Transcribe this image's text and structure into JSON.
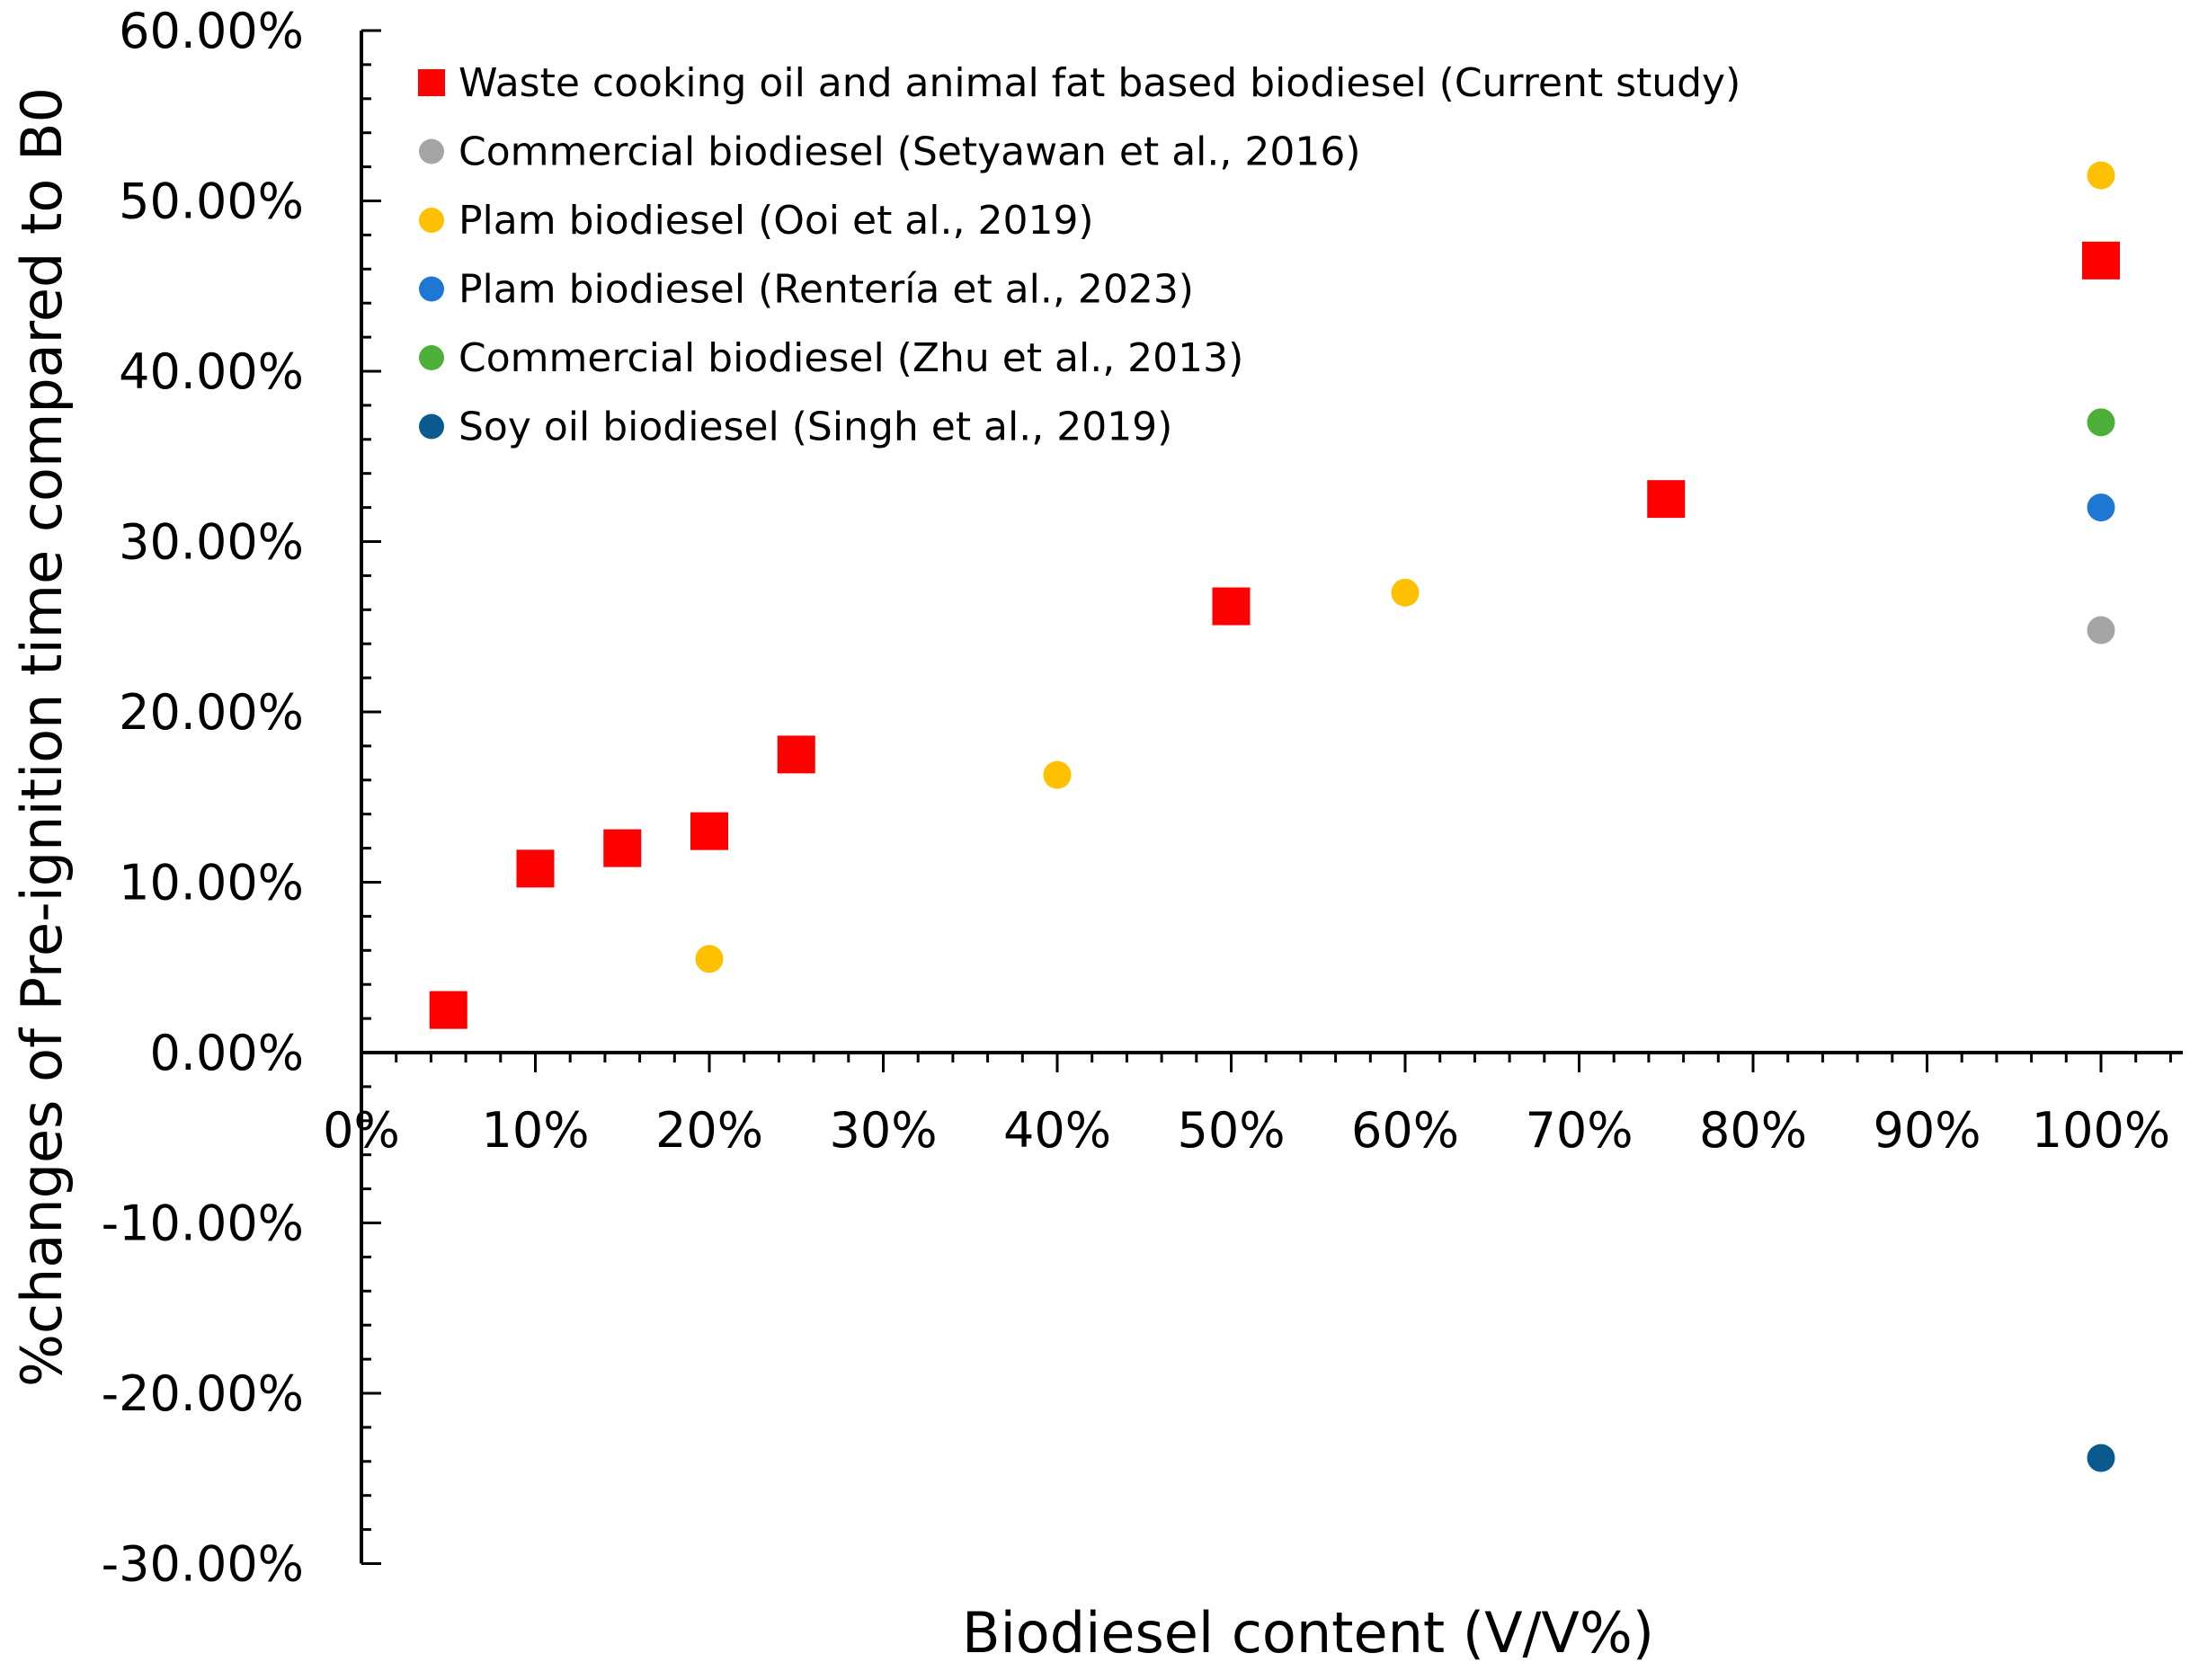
{
  "chart_data": {
    "type": "scatter",
    "title": "",
    "xlabel": "Biodiesel content (V/V%)",
    "ylabel": "%changes of Pre-ignition time compared to B0",
    "xlim": [
      0,
      105
    ],
    "ylim": [
      -30,
      60
    ],
    "x_ticks": [
      0,
      10,
      20,
      30,
      40,
      50,
      60,
      70,
      80,
      90,
      100
    ],
    "x_tick_labels": [
      "0%",
      "10%",
      "20%",
      "30%",
      "40%",
      "50%",
      "60%",
      "70%",
      "80%",
      "90%",
      "100%"
    ],
    "y_ticks": [
      60,
      50,
      40,
      30,
      20,
      10,
      0,
      -10,
      -20,
      -30
    ],
    "y_tick_labels": [
      "60.00%",
      "50.00%",
      "40.00%",
      "30.00%",
      "20.00%",
      "10.00%",
      "0.00%",
      "-10.00%",
      "-20.00%",
      "-30.00%"
    ],
    "grid": false,
    "legend_position": "top-left",
    "series": [
      {
        "name": "Waste cooking oil and animal fat based biodiesel (Current study)",
        "marker": "square",
        "color": "#ff0000",
        "points": [
          {
            "x": 5,
            "y": 2.5
          },
          {
            "x": 10,
            "y": 10.8
          },
          {
            "x": 15,
            "y": 12.0
          },
          {
            "x": 20,
            "y": 13.0
          },
          {
            "x": 25,
            "y": 17.5
          },
          {
            "x": 50,
            "y": 26.2
          },
          {
            "x": 75,
            "y": 32.5
          },
          {
            "x": 100,
            "y": 46.5
          }
        ]
      },
      {
        "name": "Commercial biodiesel (Setyawan et al., 2016)",
        "marker": "circle",
        "color": "#a5a5a5",
        "points": [
          {
            "x": 100,
            "y": 24.8
          }
        ]
      },
      {
        "name": "Plam biodiesel (Ooi et al., 2019)",
        "marker": "circle",
        "color": "#ffc000",
        "points": [
          {
            "x": 20,
            "y": 5.5
          },
          {
            "x": 40,
            "y": 16.3
          },
          {
            "x": 60,
            "y": 27.0
          },
          {
            "x": 100,
            "y": 51.5
          }
        ]
      },
      {
        "name": "Plam biodiesel (Rentería et al., 2023)",
        "marker": "circle",
        "color": "#1f77d4",
        "points": [
          {
            "x": 100,
            "y": 32.0
          }
        ]
      },
      {
        "name": "Commercial biodiesel (Zhu et al., 2013)",
        "marker": "circle",
        "color": "#4caf3a",
        "points": [
          {
            "x": 100,
            "y": 37.0
          }
        ]
      },
      {
        "name": "Soy oil biodiesel (Singh et al., 2019)",
        "marker": "circle",
        "color": "#0b5a8e",
        "points": [
          {
            "x": 100,
            "y": -23.8
          }
        ]
      }
    ]
  }
}
